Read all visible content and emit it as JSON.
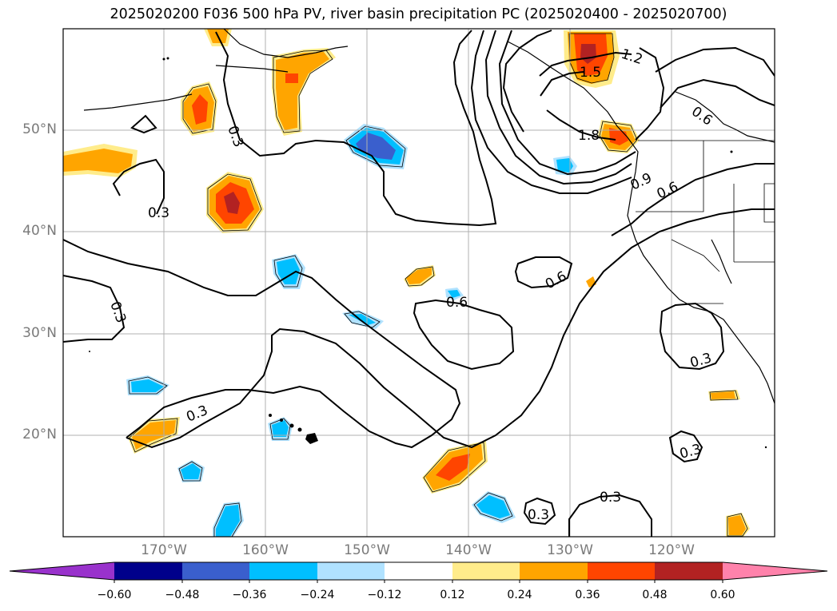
{
  "title": "2025020200 F036 500 hPa PV, river basin precipitation PC (2025020400 - 2025020700)",
  "lat_labels": [
    "50°N",
    "40°N",
    "30°N",
    "20°N"
  ],
  "lon_labels": [
    "170°W",
    "160°W",
    "150°W",
    "140°W",
    "130°W",
    "120°W"
  ],
  "contour_labels": [
    "0.3",
    "0.3",
    "0.3",
    "0.3",
    "0.3",
    "0.3",
    "0.3",
    "0.3",
    "0.3",
    "0.6",
    "0.6",
    "0.6",
    "0.6",
    "0.9",
    "1.2",
    "1.5",
    "1.8"
  ],
  "colorbar": {
    "ticks": [
      "−0.60",
      "−0.48",
      "−0.36",
      "−0.24",
      "−0.12",
      "0.12",
      "0.24",
      "0.36",
      "0.48",
      "0.60"
    ],
    "colors": [
      "#9932cc",
      "#00008b",
      "#3a5fcd",
      "#00bfff",
      "#b0e2ff",
      "#ffffff",
      "#ffec8b",
      "#ffa500",
      "#ff4500",
      "#b22222",
      "#ff82ab"
    ]
  }
}
